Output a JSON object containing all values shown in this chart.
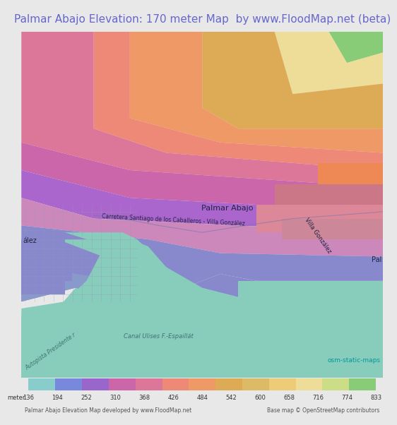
{
  "title": "Palmar Abajo Elevation: 170 meter Map  by www.FloodMap.net (beta)",
  "title_color": "#6666cc",
  "title_fontsize": 11,
  "title_bg": "#e8e8e8",
  "fig_width": 5.12,
  "fig_height": 5.82,
  "colorbar_ticks": [
    136,
    194,
    252,
    310,
    368,
    426,
    484,
    542,
    600,
    658,
    716,
    774,
    833
  ],
  "colorbar_label_bottom1": "Palmar Abajo Elevation Map developed by www.FloodMap.net",
  "colorbar_label_bottom2": "Base map © OpenStreetMap contributors",
  "osm_label": "osm-static-maps",
  "osm_color": "#009999",
  "footer_bg": "#f0f0e8",
  "colorbar_colors": [
    "#88cccc",
    "#7788dd",
    "#9966cc",
    "#cc66aa",
    "#dd7799",
    "#ee8877",
    "#ee9966",
    "#ddaa55",
    "#ddbb66",
    "#eecc77",
    "#eedd99",
    "#ccdd88",
    "#88cc77"
  ],
  "label_palmar": "Palmar Abajo",
  "label_carretera": "Carretera Santiago de los Caballeros - Villa González",
  "label_villa": "Villa González",
  "label_canal": "Canal Ulises F.-Espaillát",
  "label_autopista": "Autopista Presidente r",
  "label_pal_right": "Pal",
  "label_zalez": "ález"
}
